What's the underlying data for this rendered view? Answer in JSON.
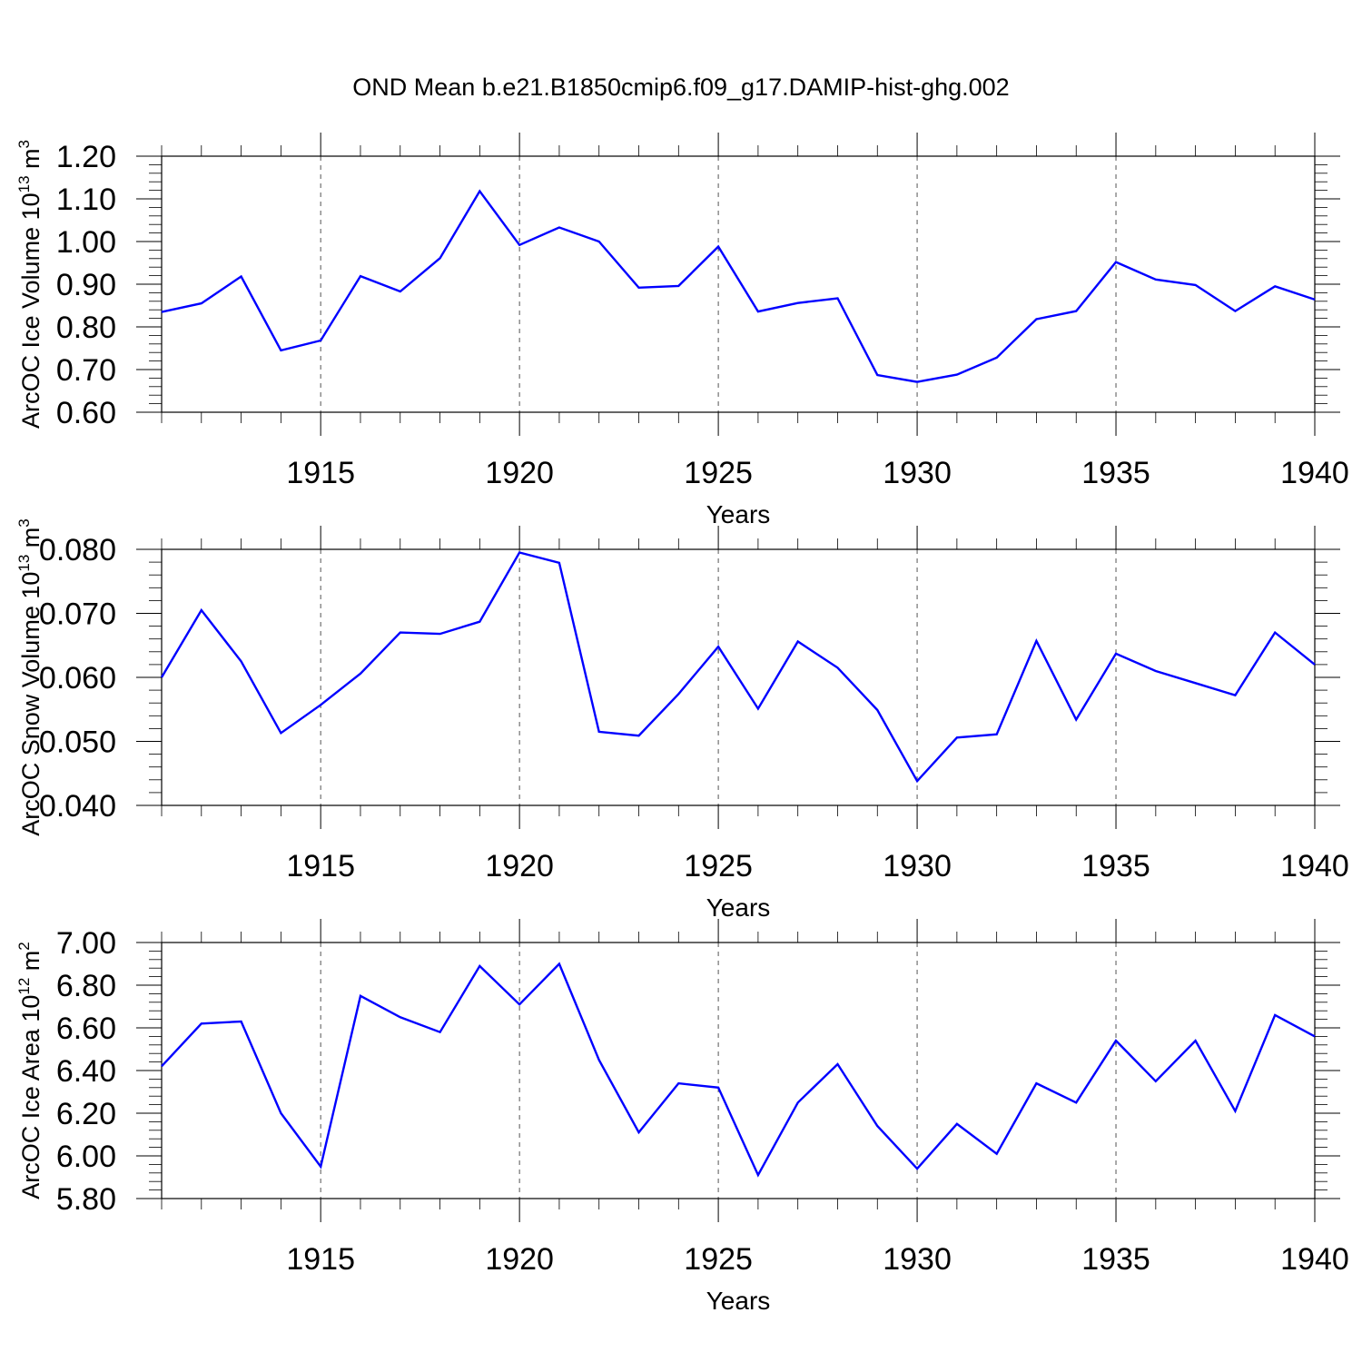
{
  "chart_data": {
    "type": "line",
    "title": "OND Mean b.e21.B1850cmip6.f09_g17.DAMIP-hist-ghg.002",
    "line_color": "#0000ff",
    "x": [
      1911,
      1912,
      1913,
      1914,
      1915,
      1916,
      1917,
      1918,
      1919,
      1920,
      1921,
      1922,
      1923,
      1924,
      1925,
      1926,
      1927,
      1928,
      1929,
      1930,
      1931,
      1932,
      1933,
      1934,
      1935,
      1936,
      1937,
      1938,
      1939,
      1940
    ],
    "xlim": [
      1911,
      1940
    ],
    "xticks": [
      "1915",
      "1920",
      "1925",
      "1930",
      "1935",
      "1940"
    ],
    "xlabel": "Years",
    "grid": "vertical dashed at major ticks",
    "panels": [
      {
        "ylabel": {
          "text": "ArcOC Ice Volume 10",
          "sup": "13",
          "unit": " m",
          "unit_sup": "3"
        },
        "ylim": [
          0.6,
          1.2
        ],
        "yticks": [
          "0.60",
          "0.70",
          "0.80",
          "0.90",
          "1.00",
          "1.10",
          "1.20"
        ],
        "values": [
          0.835,
          0.855,
          0.918,
          0.745,
          0.768,
          0.919,
          0.883,
          0.961,
          1.118,
          0.992,
          1.033,
          1.0,
          0.892,
          0.896,
          0.988,
          0.836,
          0.856,
          0.867,
          0.687,
          0.671,
          0.688,
          0.728,
          0.818,
          0.837,
          0.952,
          0.911,
          0.898,
          0.837,
          0.895,
          0.864
        ]
      },
      {
        "ylabel": {
          "text": "ArcOC Snow Volume 10",
          "sup": "13",
          "unit": " m",
          "unit_sup": "3"
        },
        "ylim": [
          0.04,
          0.08
        ],
        "yticks": [
          "0.040",
          "0.050",
          "0.060",
          "0.070",
          "0.080"
        ],
        "values": [
          0.06,
          0.0705,
          0.0625,
          0.0513,
          0.0557,
          0.0606,
          0.067,
          0.0668,
          0.0687,
          0.0795,
          0.0779,
          0.0515,
          0.0509,
          0.0574,
          0.0648,
          0.0551,
          0.0656,
          0.0615,
          0.0549,
          0.0438,
          0.0506,
          0.0511,
          0.0657,
          0.0534,
          0.0637,
          0.061,
          0.0591,
          0.0572,
          0.067,
          0.062
        ]
      },
      {
        "ylabel": {
          "text": "ArcOC Ice Area 10",
          "sup": "12",
          "unit": " m",
          "unit_sup": "2"
        },
        "ylim": [
          5.8,
          7.0
        ],
        "yticks": [
          "5.80",
          "6.00",
          "6.20",
          "6.40",
          "6.60",
          "6.80",
          "7.00"
        ],
        "values": [
          6.42,
          6.62,
          6.63,
          6.2,
          5.95,
          6.75,
          6.65,
          6.58,
          6.89,
          6.71,
          6.9,
          6.45,
          6.11,
          6.34,
          6.32,
          5.91,
          6.25,
          6.43,
          6.14,
          5.94,
          6.15,
          6.01,
          6.34,
          6.25,
          6.54,
          6.35,
          6.54,
          6.21,
          6.66,
          6.56
        ]
      }
    ]
  }
}
